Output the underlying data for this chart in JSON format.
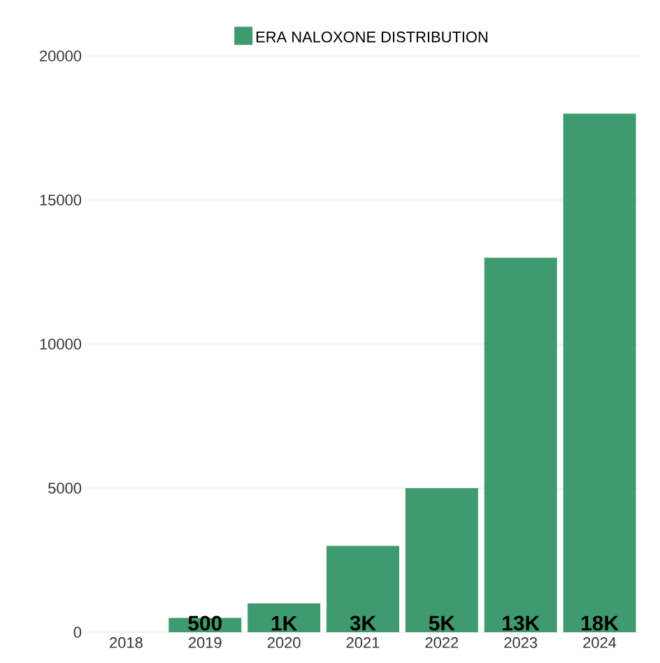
{
  "chart_data": {
    "type": "bar",
    "categories": [
      "2018",
      "2019",
      "2020",
      "2021",
      "2022",
      "2023",
      "2024"
    ],
    "series": [
      {
        "name": "ERA NALOXONE DISTRIBUTION",
        "color": "#3f9b6f",
        "values": [
          0,
          500,
          1000,
          3000,
          5000,
          13000,
          18000
        ],
        "value_labels": [
          null,
          "500",
          "1K",
          "3K",
          "5K",
          "13K",
          "18K"
        ]
      }
    ],
    "ylim": [
      0,
      20000
    ],
    "yticks": [
      0,
      5000,
      10000,
      15000,
      20000
    ],
    "grid": "y",
    "legend": "top"
  }
}
